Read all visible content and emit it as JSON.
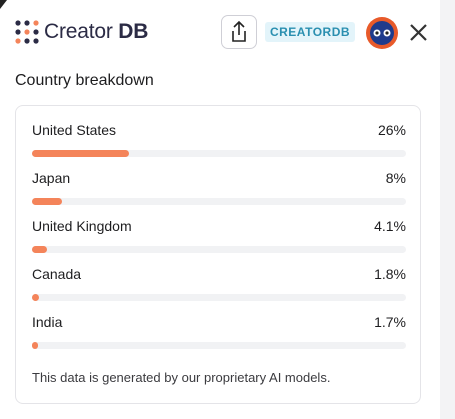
{
  "header": {
    "logo_text": [
      "Creator",
      "DB"
    ],
    "badge": "CREATORDB"
  },
  "breakdown": {
    "title": "Country breakdown",
    "categories": [
      "United States",
      "Japan",
      "United Kingdom",
      "Canada",
      "India"
    ],
    "values": [
      26,
      8,
      4.1,
      1.8,
      1.7
    ],
    "value_labels": [
      "26%",
      "8%",
      "4.1%",
      "1.8%",
      "1.7%"
    ],
    "xlim": [
      0,
      100
    ],
    "note": "This data is generated by our proprietary AI models."
  }
}
